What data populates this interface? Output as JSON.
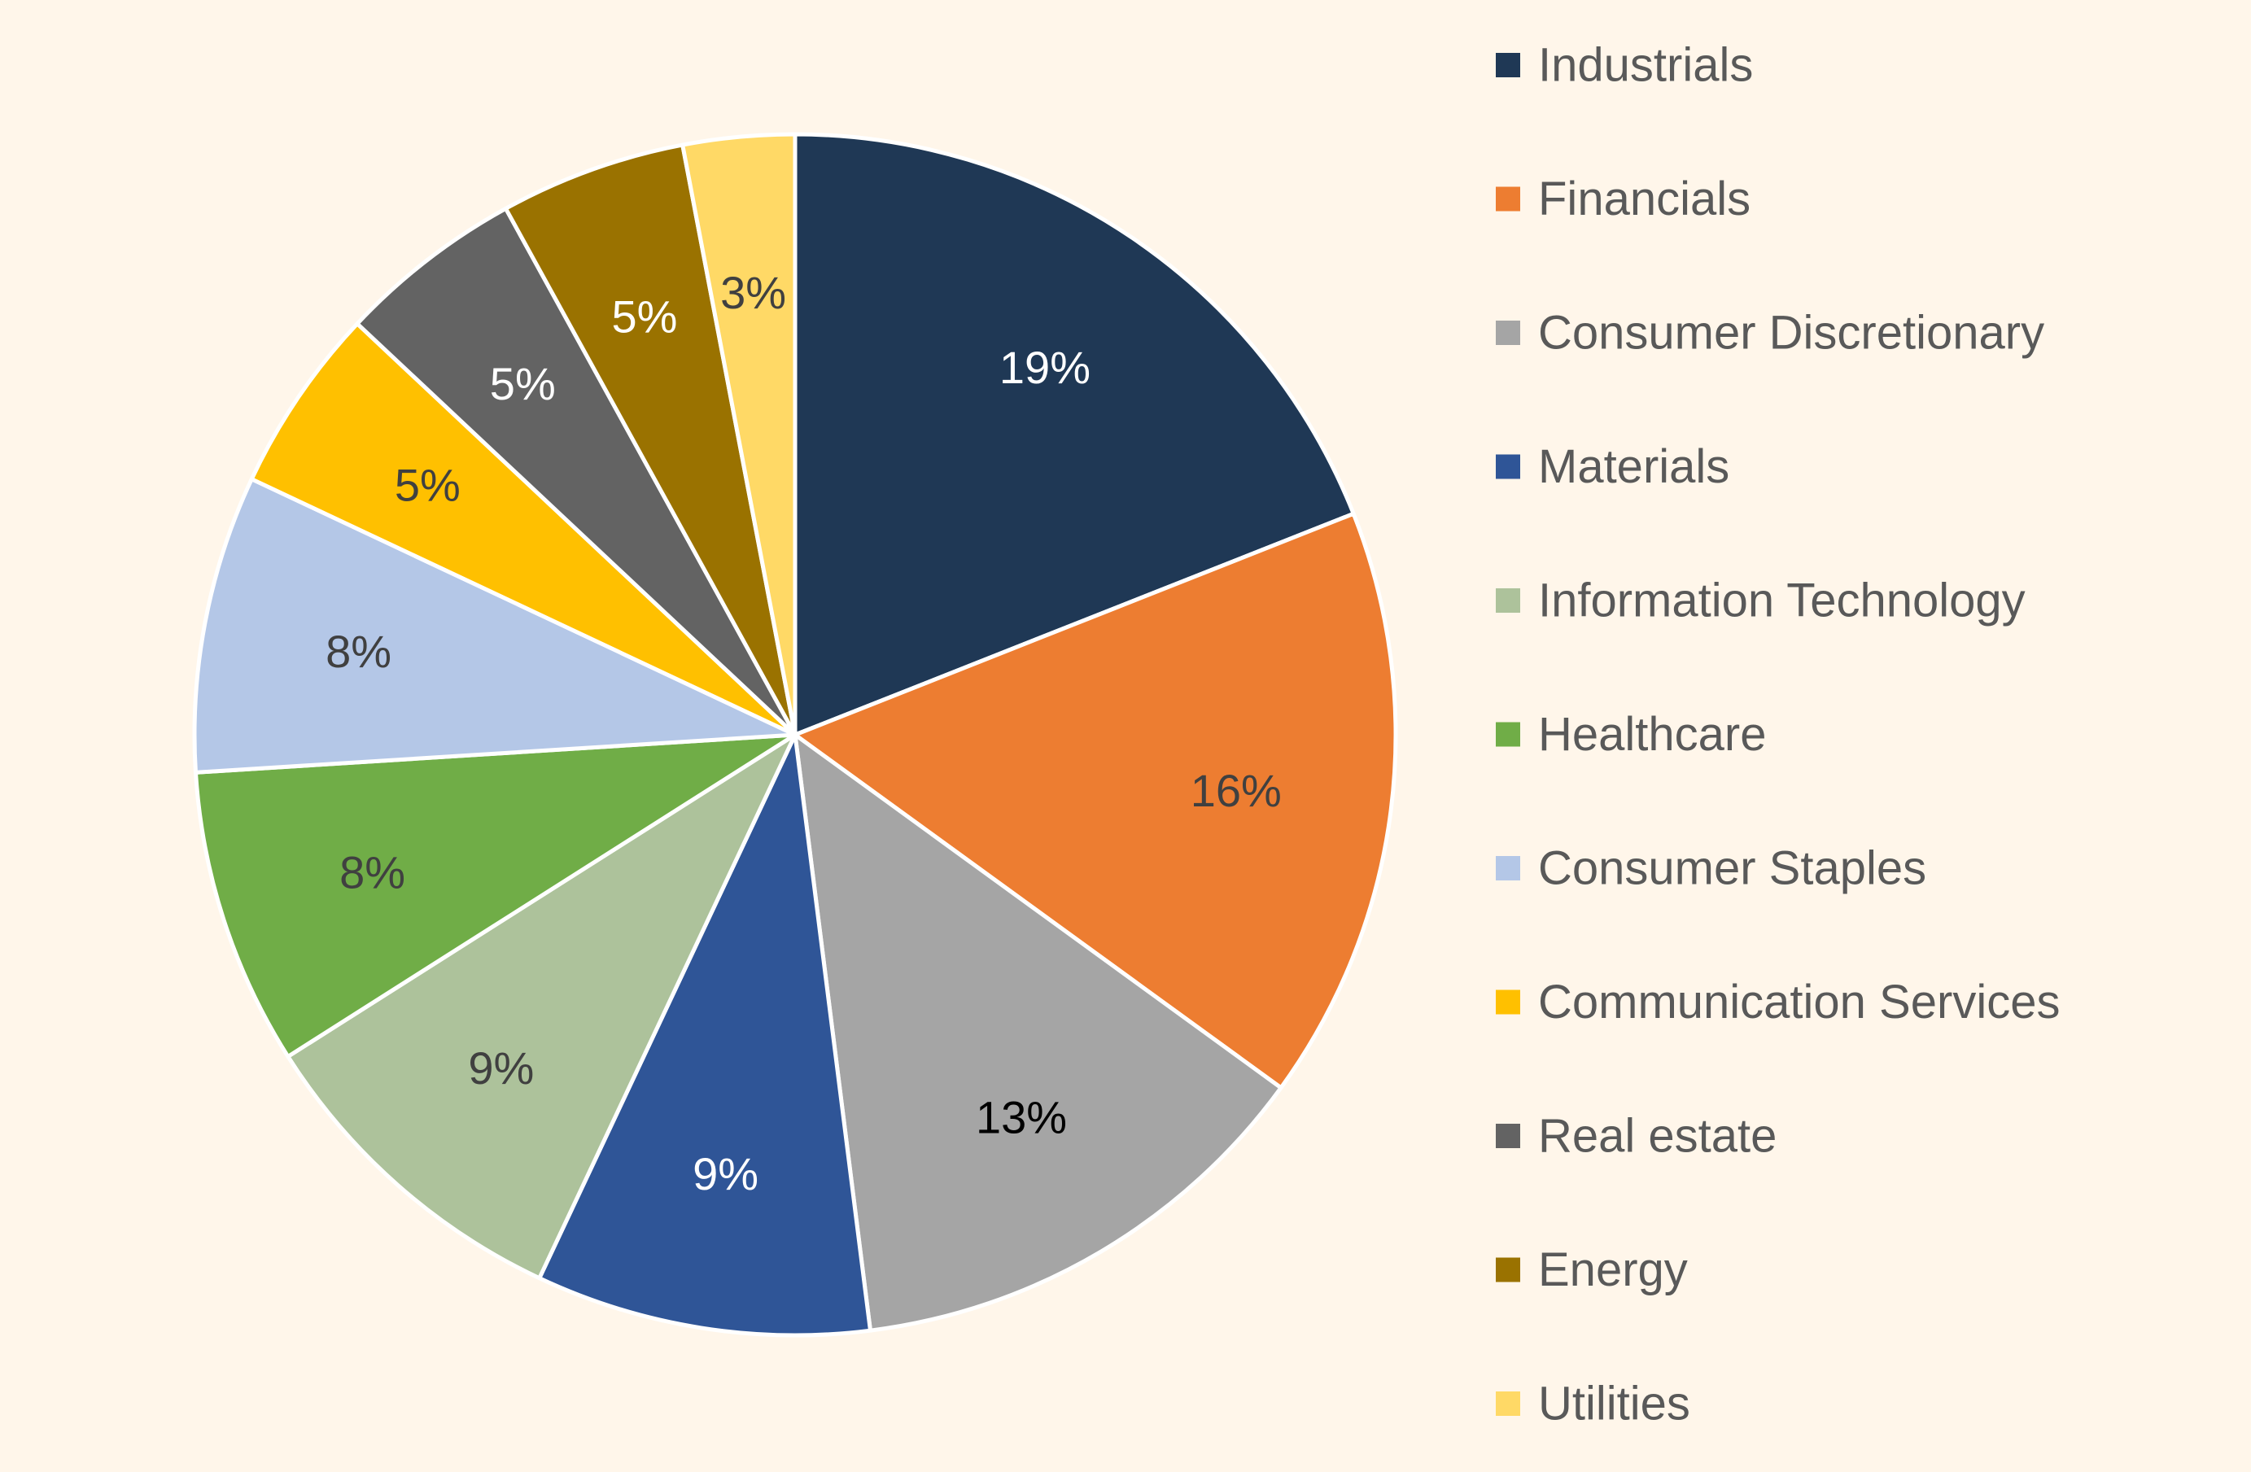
{
  "chart_data": {
    "type": "pie",
    "categories": [
      "Industrials",
      "Financials",
      "Consumer Discretionary",
      "Materials",
      "Information Technology",
      "Healthcare",
      "Consumer Staples",
      "Communication Services",
      "Real estate",
      "Energy",
      "Utilities"
    ],
    "values": [
      19,
      16,
      13,
      9,
      9,
      8,
      8,
      5,
      5,
      5,
      3
    ],
    "data_labels": [
      "19%",
      "16%",
      "13%",
      "9%",
      "9%",
      "8%",
      "8%",
      "5%",
      "5%",
      "5%",
      "3%"
    ],
    "colors": [
      "#1F3855",
      "#ED7D31",
      "#A5A5A5",
      "#2F5597",
      "#ADC29B",
      "#70AD47",
      "#B4C7E7",
      "#FFC000",
      "#636363",
      "#9A7200",
      "#FFD966"
    ],
    "label_colors": [
      "#FFFFFF",
      "#404040",
      "#000000",
      "#FFFFFF",
      "#404040",
      "#404040",
      "#404040",
      "#404040",
      "#FFFFFF",
      "#FFFFFF",
      "#404040"
    ],
    "title": "",
    "legend_position": "right",
    "start_angle": "12 o'clock",
    "direction": "clockwise"
  }
}
